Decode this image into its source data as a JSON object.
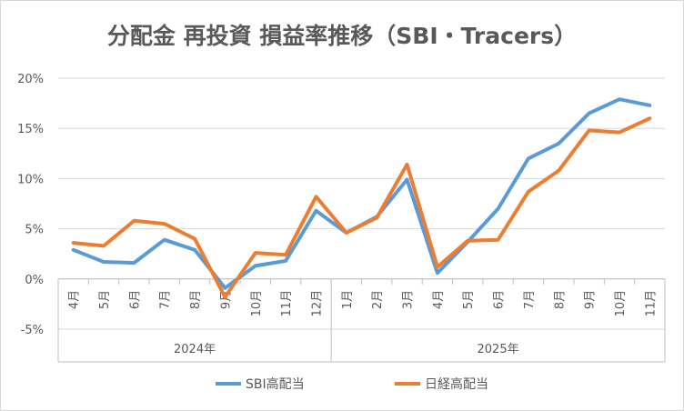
{
  "chart_data": {
    "type": "line",
    "title": "分配金 再投資 損益率推移（SBI・Tracers）",
    "xlabel": "",
    "ylabel": "",
    "ylim": [
      -0.05,
      0.2
    ],
    "yticks": [
      "-5%",
      "0%",
      "5%",
      "10%",
      "15%",
      "20%"
    ],
    "ytick_values": [
      -0.05,
      0,
      0.05,
      0.1,
      0.15,
      0.2
    ],
    "grid": true,
    "legend_position": "bottom",
    "groups": [
      {
        "label": "2024年",
        "months": [
          "4月",
          "5月",
          "6月",
          "7月",
          "8月",
          "9月",
          "10月",
          "11月",
          "12月"
        ]
      },
      {
        "label": "2025年",
        "months": [
          "1月",
          "2月",
          "3月",
          "4月",
          "5月",
          "6月",
          "7月",
          "8月",
          "9月",
          "10月",
          "11月"
        ]
      }
    ],
    "series": [
      {
        "name": "SBI高配当",
        "color": "#5B9BD5",
        "values": [
          0.029,
          0.017,
          0.016,
          0.039,
          0.029,
          -0.009,
          0.013,
          0.018,
          0.068,
          0.046,
          0.062,
          0.099,
          0.006,
          0.037,
          0.07,
          0.12,
          0.135,
          0.165,
          0.179,
          0.173
        ]
      },
      {
        "name": "日経高配当",
        "color": "#ED7D31",
        "values": [
          0.036,
          0.033,
          0.058,
          0.055,
          0.04,
          -0.018,
          0.026,
          0.024,
          0.082,
          0.046,
          0.061,
          0.114,
          0.012,
          0.038,
          0.039,
          0.087,
          0.108,
          0.148,
          0.146,
          0.16
        ]
      }
    ]
  }
}
